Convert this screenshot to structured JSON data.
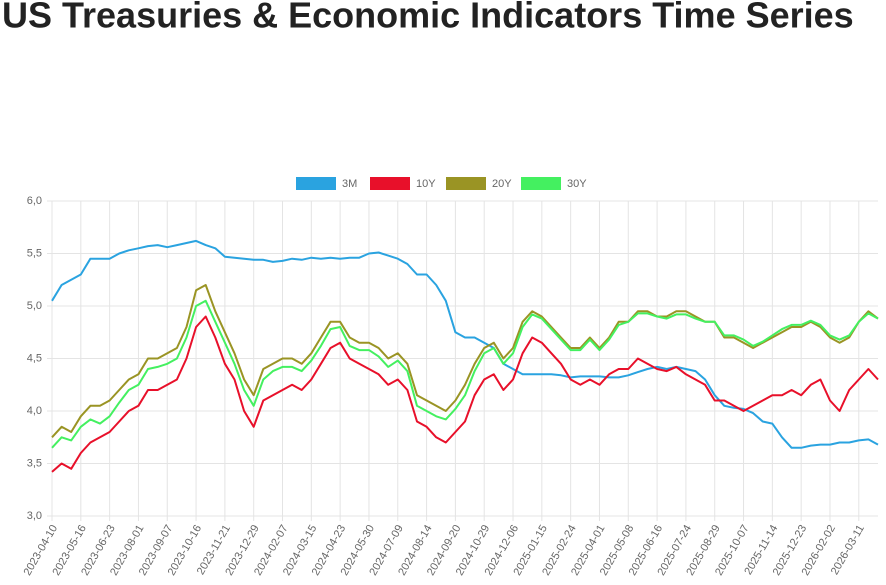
{
  "chart_data": {
    "type": "line",
    "title": "US Treasuries & Economic Indicators Time Series",
    "categories": [
      "2023-04-10",
      null,
      null,
      "2023-05-16",
      null,
      null,
      "2023-06-23",
      null,
      null,
      "2023-08-01",
      null,
      null,
      "2023-09-07",
      null,
      null,
      "2023-10-16",
      null,
      null,
      "2023-11-21",
      null,
      null,
      "2023-12-29",
      null,
      null,
      "2024-02-07",
      null,
      null,
      "2024-03-15",
      null,
      null,
      "2024-04-23",
      null,
      null,
      "2024-05-30",
      null,
      null,
      "2024-07-09",
      null,
      null,
      "2024-08-14",
      null,
      null,
      "2024-09-20",
      null,
      null,
      "2024-10-29",
      null,
      null,
      "2024-12-06",
      null,
      null,
      "2025-01-15",
      null,
      null,
      "2025-02-24",
      null,
      null,
      "2025-04-01",
      null,
      null,
      "2025-05-08",
      null,
      null,
      "2025-06-16",
      null,
      null,
      "2025-07-24",
      null,
      null,
      "2025-08-29",
      null,
      null,
      "2025-10-07",
      null,
      null,
      "2025-11-14",
      null,
      null,
      "2025-12-23",
      null,
      null,
      "2026-02-02",
      null,
      null,
      "2026-03-11",
      null,
      null
    ],
    "series": [
      {
        "name": "3M",
        "color": "#2aa3e0",
        "values": [
          5.05,
          5.2,
          5.25,
          5.3,
          5.45,
          5.45,
          5.45,
          5.5,
          5.53,
          5.55,
          5.57,
          5.58,
          5.56,
          5.58,
          5.6,
          5.62,
          5.58,
          5.55,
          5.47,
          5.46,
          5.45,
          5.44,
          5.44,
          5.42,
          5.43,
          5.45,
          5.44,
          5.46,
          5.45,
          5.46,
          5.45,
          5.46,
          5.46,
          5.5,
          5.51,
          5.48,
          5.45,
          5.4,
          5.3,
          5.3,
          5.2,
          5.05,
          4.75,
          4.7,
          4.7,
          4.65,
          4.6,
          4.45,
          4.4,
          4.35,
          4.35,
          4.35,
          4.35,
          4.34,
          4.32,
          4.33,
          4.33,
          4.33,
          4.32,
          4.32,
          4.34,
          4.37,
          4.4,
          4.42,
          4.4,
          4.42,
          4.4,
          4.38,
          4.3,
          4.15,
          4.05,
          4.03,
          4.02,
          3.98,
          3.9,
          3.88,
          3.75,
          3.65,
          3.65,
          3.67,
          3.68,
          3.68,
          3.7,
          3.7,
          3.72,
          3.73,
          3.68
        ]
      },
      {
        "name": "10Y",
        "color": "#e8102a",
        "values": [
          3.42,
          3.5,
          3.45,
          3.6,
          3.7,
          3.75,
          3.8,
          3.9,
          4.0,
          4.05,
          4.2,
          4.2,
          4.25,
          4.3,
          4.5,
          4.8,
          4.9,
          4.7,
          4.45,
          4.3,
          4.0,
          3.85,
          4.1,
          4.15,
          4.2,
          4.25,
          4.2,
          4.3,
          4.45,
          4.6,
          4.65,
          4.5,
          4.45,
          4.4,
          4.35,
          4.25,
          4.3,
          4.2,
          3.9,
          3.85,
          3.75,
          3.7,
          3.8,
          3.9,
          4.15,
          4.3,
          4.35,
          4.2,
          4.3,
          4.55,
          4.7,
          4.65,
          4.55,
          4.45,
          4.3,
          4.25,
          4.3,
          4.25,
          4.35,
          4.4,
          4.4,
          4.5,
          4.45,
          4.4,
          4.38,
          4.42,
          4.35,
          4.3,
          4.25,
          4.1,
          4.1,
          4.05,
          4.0,
          4.05,
          4.1,
          4.15,
          4.15,
          4.2,
          4.15,
          4.25,
          4.3,
          4.1,
          4.0,
          4.2,
          4.3,
          4.4,
          4.3
        ]
      },
      {
        "name": "20Y",
        "color": "#9a9424",
        "values": [
          3.75,
          3.85,
          3.8,
          3.95,
          4.05,
          4.05,
          4.1,
          4.2,
          4.3,
          4.35,
          4.5,
          4.5,
          4.55,
          4.6,
          4.8,
          5.15,
          5.2,
          4.95,
          4.75,
          4.55,
          4.3,
          4.15,
          4.4,
          4.45,
          4.5,
          4.5,
          4.45,
          4.55,
          4.7,
          4.85,
          4.85,
          4.7,
          4.65,
          4.65,
          4.6,
          4.5,
          4.55,
          4.45,
          4.15,
          4.1,
          4.05,
          4.0,
          4.1,
          4.25,
          4.45,
          4.6,
          4.65,
          4.5,
          4.6,
          4.85,
          4.95,
          4.9,
          4.8,
          4.7,
          4.6,
          4.6,
          4.7,
          4.6,
          4.7,
          4.85,
          4.85,
          4.95,
          4.95,
          4.9,
          4.9,
          4.95,
          4.95,
          4.9,
          4.85,
          4.85,
          4.7,
          4.7,
          4.65,
          4.6,
          4.65,
          4.7,
          4.75,
          4.8,
          4.8,
          4.85,
          4.8,
          4.7,
          4.65,
          4.7,
          4.85,
          4.95,
          4.88
        ]
      },
      {
        "name": "30Y",
        "color": "#44f060",
        "values": [
          3.65,
          3.75,
          3.72,
          3.85,
          3.92,
          3.88,
          3.95,
          4.08,
          4.2,
          4.25,
          4.4,
          4.42,
          4.45,
          4.5,
          4.7,
          5.0,
          5.05,
          4.85,
          4.65,
          4.45,
          4.2,
          4.05,
          4.3,
          4.38,
          4.42,
          4.42,
          4.38,
          4.48,
          4.62,
          4.78,
          4.8,
          4.62,
          4.58,
          4.58,
          4.52,
          4.42,
          4.48,
          4.38,
          4.05,
          4.0,
          3.95,
          3.92,
          4.02,
          4.15,
          4.38,
          4.55,
          4.6,
          4.45,
          4.55,
          4.8,
          4.92,
          4.88,
          4.78,
          4.68,
          4.58,
          4.58,
          4.68,
          4.58,
          4.68,
          4.82,
          4.85,
          4.93,
          4.93,
          4.9,
          4.88,
          4.92,
          4.92,
          4.88,
          4.85,
          4.85,
          4.72,
          4.72,
          4.68,
          4.62,
          4.66,
          4.72,
          4.78,
          4.82,
          4.82,
          4.86,
          4.82,
          4.72,
          4.68,
          4.72,
          4.85,
          4.93,
          4.88
        ]
      }
    ],
    "ylim": [
      3.0,
      6.0
    ],
    "yticks": [
      {
        "value": 3.0,
        "label": "3,0"
      },
      {
        "value": 3.5,
        "label": "3,5"
      },
      {
        "value": 4.0,
        "label": "4,0"
      },
      {
        "value": 4.5,
        "label": "4,5"
      },
      {
        "value": 5.0,
        "label": "5,0"
      },
      {
        "value": 5.5,
        "label": "5,5"
      },
      {
        "value": 6.0,
        "label": "6,0"
      }
    ],
    "grid": true
  }
}
